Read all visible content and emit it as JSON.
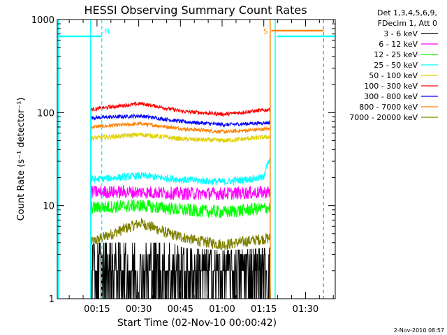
{
  "chart_data": {
    "type": "line",
    "title": "HESSI Observing Summary Count Rates",
    "xlabel": "Start Time (02-Nov-10 00:00:42)",
    "ylabel": "Count Rate (s⁻¹ detector⁻¹)",
    "yscale": "log",
    "ylim": [
      1,
      1000
    ],
    "xlim_minutes": [
      0,
      100
    ],
    "x_ticks": [
      {
        "min": 14.3,
        "label": "00:15"
      },
      {
        "min": 29.3,
        "label": "00:30"
      },
      {
        "min": 44.3,
        "label": "00:45"
      },
      {
        "min": 59.3,
        "label": "01:00"
      },
      {
        "min": 74.3,
        "label": "01:15"
      },
      {
        "min": 89.3,
        "label": "01:30"
      }
    ],
    "y_ticks": [
      {
        "value": 1,
        "label": "1"
      },
      {
        "value": 10,
        "label": "10"
      },
      {
        "value": 100,
        "label": "100"
      },
      {
        "value": 1000,
        "label": "1000"
      }
    ],
    "legend_header": [
      "Det 1,3,4,5,6,9,",
      "FDecim 1, Att 0"
    ],
    "series": [
      {
        "name": "3 - 6 keV",
        "color": "#000000",
        "x": [
          12.2,
          30,
          45,
          60,
          76.7
        ],
        "values": [
          1.7,
          2.5,
          1.6,
          1.5,
          1.6
        ],
        "noise": 0.35
      },
      {
        "name": "6 - 12 keV",
        "color": "#ff00ff",
        "x": [
          12.2,
          30,
          45,
          60,
          76.7
        ],
        "values": [
          14,
          14,
          13.5,
          13.5,
          14
        ],
        "noise": 0.07
      },
      {
        "name": "12 - 25 keV",
        "color": "#00ff00",
        "x": [
          12.2,
          30,
          45,
          60,
          76.7
        ],
        "values": [
          9.5,
          10,
          9,
          8.5,
          9.5
        ],
        "noise": 0.07
      },
      {
        "name": "25 - 50 keV",
        "color": "#00ffff",
        "x": [
          12.2,
          30,
          45,
          60,
          74,
          76.7
        ],
        "values": [
          19,
          21,
          19,
          18,
          20,
          32
        ],
        "noise": 0.04
      },
      {
        "name": "50 - 100 keV",
        "color": "#e0d000",
        "x": [
          12.2,
          30,
          45,
          60,
          76.7
        ],
        "values": [
          53,
          58,
          52,
          50,
          55
        ],
        "noise": 0.025
      },
      {
        "name": "100 - 300 keV",
        "color": "#ff0000",
        "x": [
          12.2,
          30,
          45,
          60,
          76.7
        ],
        "values": [
          108,
          125,
          103,
          96,
          108
        ],
        "noise": 0.02
      },
      {
        "name": "300 - 800 keV",
        "color": "#0000ff",
        "x": [
          12.2,
          30,
          45,
          60,
          76.7
        ],
        "values": [
          88,
          92,
          80,
          74,
          78
        ],
        "noise": 0.02
      },
      {
        "name": "800 - 7000 keV",
        "color": "#ff8000",
        "x": [
          12.2,
          30,
          45,
          60,
          76.7
        ],
        "values": [
          70,
          76,
          67,
          62,
          67
        ],
        "noise": 0.02
      },
      {
        "name": "7000 - 20000 keV",
        "color": "#808000",
        "x": [
          12.2,
          20,
          30,
          40,
          50,
          60,
          76.7
        ],
        "values": [
          4,
          5,
          6.5,
          5,
          4.2,
          3.8,
          4.5
        ],
        "noise": 0.06
      }
    ],
    "annotations": [
      {
        "label": "N",
        "color": "#00ffff",
        "x_min": 16
      },
      {
        "label": "S",
        "color": "#ff8000",
        "x_min": 76.7
      }
    ],
    "footer": "2-Nov-2010 08:57"
  }
}
